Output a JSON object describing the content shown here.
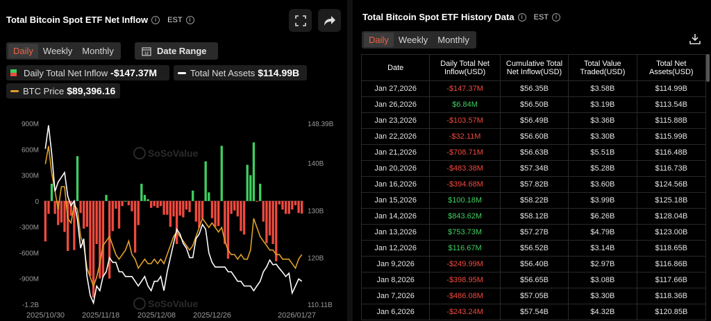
{
  "left": {
    "title": "Total Bitcoin Spot ETF Net Inflow",
    "tz": "EST",
    "tabs": [
      "Daily",
      "Weekly",
      "Monthly"
    ],
    "active_tab": "Daily",
    "date_range_label": "Date Range",
    "date_range_icon_text": "12",
    "legend": {
      "daily_label": "Daily Total Net Inflow",
      "daily_value": "-$147.37M",
      "assets_label": "Total Net Assets",
      "assets_value": "$114.99B",
      "btc_label": "BTC Price",
      "btc_value": "$89,396.16"
    }
  },
  "chart_data": {
    "type": "bar",
    "left_axis_ticks": [
      "900M",
      "600M",
      "300M",
      "0",
      "-300M",
      "-600M",
      "-900M",
      "-1.2B"
    ],
    "ylim": [
      -1200,
      900
    ],
    "right_axis_ticks": [
      "148.39B",
      "140B",
      "130B",
      "120B",
      "110.11B"
    ],
    "y2lim": [
      110.11,
      148.39
    ],
    "x_ticks": [
      "2025/10/30",
      "2025/11/18",
      "2025/12/08",
      "2025/12/26",
      "2026/01/27"
    ],
    "series": [
      {
        "name": "Daily Total Net Inflow",
        "unit": "M USD",
        "values": [
          -470,
          -150,
          200,
          -150,
          -280,
          -250,
          -360,
          -580,
          -170,
          -570,
          520,
          -140,
          -320,
          -300,
          -870,
          -1120,
          -500,
          -900,
          -880,
          70,
          -900,
          -350,
          -90,
          -320,
          -60,
          0,
          -50,
          -120,
          -600,
          -280,
          200,
          70,
          20,
          -80,
          -60,
          -80,
          -60,
          -160,
          -160,
          -300,
          -180,
          -500,
          -170,
          -190,
          -100,
          -130,
          120,
          -240,
          -310,
          -200,
          460,
          100,
          -200,
          -300,
          -290,
          640,
          -500,
          -670,
          -150,
          -110,
          -180,
          -350,
          -390,
          420,
          300,
          680,
          -5,
          200,
          -240,
          -490,
          -400,
          -500,
          -700,
          -40,
          -100,
          -150,
          -150,
          -100,
          -50,
          -140,
          -147
        ]
      },
      {
        "name": "Total Net Assets",
        "unit": "B USD",
        "values": [
          143,
          148,
          142,
          134,
          136,
          137,
          138,
          133,
          131,
          132,
          128,
          122,
          124,
          116,
          112,
          110.4,
          114,
          113,
          116,
          117,
          120,
          119,
          119,
          117,
          117,
          116,
          116,
          116,
          115,
          114,
          115,
          116,
          114,
          113,
          115,
          115,
          116,
          113,
          117,
          120,
          123,
          126,
          125,
          123,
          122,
          120,
          120,
          124,
          125,
          127,
          126,
          121,
          119,
          118,
          118,
          118,
          118,
          117,
          117,
          116,
          115,
          115,
          114,
          114,
          114,
          113,
          114,
          115,
          117,
          118,
          119.5,
          118.5,
          118.6,
          117.7,
          116.9,
          116,
          116.7,
          112.5,
          114,
          115.5,
          115
        ]
      },
      {
        "name": "BTC Price",
        "unit": "USD",
        "values": [
          109000,
          113000,
          107000,
          103000,
          99000,
          104000,
          104000,
          97000,
          96000,
          100000,
          99000,
          93000,
          91000,
          86000,
          84000,
          82000,
          84000,
          87000,
          91000,
          92000,
          93000,
          91000,
          89000,
          88000,
          89000,
          90000,
          92000,
          89000,
          88000,
          86000,
          87000,
          88000,
          87000,
          87000,
          88000,
          87000,
          88000,
          87000,
          89000,
          91000,
          93000,
          94000,
          93000,
          92000,
          91000,
          90000,
          91000,
          93000,
          95000,
          97000,
          96000,
          95000,
          96000,
          95000,
          94000,
          95000,
          92000,
          90000,
          89000,
          89000,
          88000,
          89000,
          88000,
          88000,
          90000,
          97000,
          95000,
          93000,
          92000,
          91000,
          90000,
          90000,
          89000,
          89000,
          88000,
          88000,
          88000,
          87000,
          86000,
          88000,
          89000
        ]
      }
    ],
    "watermark": "SoSoValue"
  },
  "right": {
    "title": "Total Bitcoin Spot ETF History Data",
    "tz": "EST",
    "tabs": [
      "Daily",
      "Weekly",
      "Monthly"
    ],
    "active_tab": "Daily",
    "headers": [
      "Date",
      "Daily Total Net Inflow(USD)",
      "Cumulative Total Net Inflow(USD)",
      "Total Value Traded(USD)",
      "Total Net Assets(USD)"
    ],
    "rows": [
      [
        "Jan 27,2026",
        "-$147.37M",
        "$56.35B",
        "$3.58B",
        "$114.99B"
      ],
      [
        "Jan 26,2026",
        "$6.84M",
        "$56.50B",
        "$3.19B",
        "$113.54B"
      ],
      [
        "Jan 23,2026",
        "-$103.57M",
        "$56.49B",
        "$3.36B",
        "$115.88B"
      ],
      [
        "Jan 22,2026",
        "-$32.11M",
        "$56.60B",
        "$3.30B",
        "$115.99B"
      ],
      [
        "Jan 21,2026",
        "-$708.71M",
        "$56.63B",
        "$5.51B",
        "$116.48B"
      ],
      [
        "Jan 20,2026",
        "-$483.38M",
        "$57.34B",
        "$5.28B",
        "$116.73B"
      ],
      [
        "Jan 16,2026",
        "-$394.68M",
        "$57.82B",
        "$3.60B",
        "$124.56B"
      ],
      [
        "Jan 15,2026",
        "$100.18M",
        "$58.22B",
        "$3.99B",
        "$125.18B"
      ],
      [
        "Jan 14,2026",
        "$843.62M",
        "$58.12B",
        "$6.26B",
        "$128.04B"
      ],
      [
        "Jan 13,2026",
        "$753.73M",
        "$57.27B",
        "$4.79B",
        "$123.00B"
      ],
      [
        "Jan 12,2026",
        "$116.67M",
        "$56.52B",
        "$3.14B",
        "$118.65B"
      ],
      [
        "Jan 9,2026",
        "-$249.99M",
        "$56.40B",
        "$2.97B",
        "$116.86B"
      ],
      [
        "Jan 8,2026",
        "-$398.95M",
        "$56.65B",
        "$3.08B",
        "$117.66B"
      ],
      [
        "Jan 7,2026",
        "-$486.08M",
        "$57.05B",
        "$3.30B",
        "$118.36B"
      ],
      [
        "Jan 6,2026",
        "-$243.24M",
        "$57.54B",
        "$4.32B",
        "$120.85B"
      ]
    ]
  },
  "icons": {
    "fullscreen": "fullscreen-icon",
    "share": "share-icon",
    "download": "download-icon",
    "info": "info-icon",
    "calendar": "calendar-icon"
  },
  "colors": {
    "positive": "#3fcf5f",
    "negative": "#ef4a3f",
    "btc": "#e0a12a",
    "assets": "#ffffff",
    "accent": "#f0603e"
  }
}
